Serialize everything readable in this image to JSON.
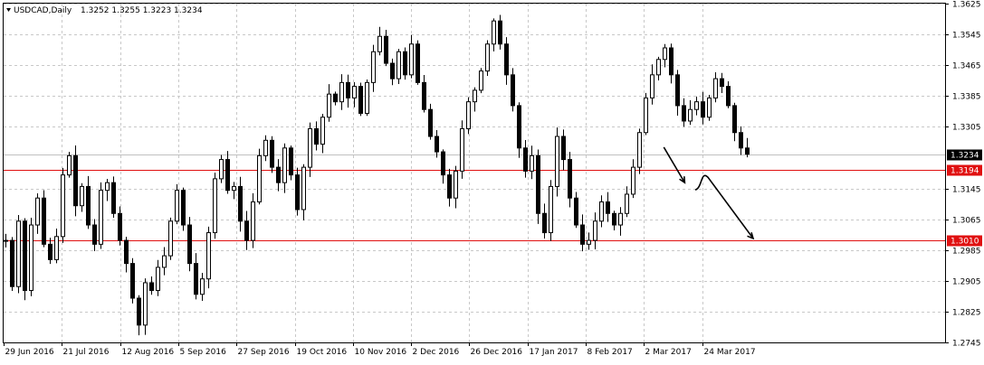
{
  "chart_data": {
    "type": "candlestick",
    "header": {
      "symbol": "USDCAD,Daily",
      "ohlc": "1.3252 1.3255 1.3223 1.3234"
    },
    "y_axis": {
      "ylim": [
        1.2745,
        1.3625
      ],
      "ticks": [
        "1.3625",
        "1.3545",
        "1.3465",
        "1.3385",
        "1.3305",
        "1.3145",
        "1.3065",
        "1.2985",
        "1.2905",
        "1.2825",
        "1.2745"
      ],
      "grid": true
    },
    "x_axis": {
      "ticks": [
        "29 Jun 2016",
        "21 Jul 2016",
        "12 Aug 2016",
        "5 Sep 2016",
        "27 Sep 2016",
        "19 Oct 2016",
        "10 Nov 2016",
        "2 Dec 2016",
        "26 Dec 2016",
        "17 Jan 2017",
        "8 Feb 2017",
        "2 Mar 2017",
        "24 Mar 2017"
      ],
      "grid": true
    },
    "current_price_tag": {
      "value": 1.3234,
      "label": "1.3234",
      "color": "#000000"
    },
    "horizontal_levels": [
      {
        "value": 1.3194,
        "label": "1.3194",
        "color": "#e01010"
      },
      {
        "value": 1.301,
        "label": "1.3010",
        "color": "#e01010"
      }
    ],
    "price_path": [
      1.301,
      1.289,
      1.306,
      1.288,
      1.305,
      1.312,
      1.3,
      1.296,
      1.302,
      1.318,
      1.323,
      1.31,
      1.315,
      1.305,
      1.3,
      1.314,
      1.316,
      1.308,
      1.301,
      1.295,
      1.286,
      1.279,
      1.29,
      1.288,
      1.294,
      1.297,
      1.306,
      1.314,
      1.305,
      1.295,
      1.287,
      1.291,
      1.303,
      1.317,
      1.322,
      1.314,
      1.315,
      1.306,
      1.301,
      1.311,
      1.323,
      1.327,
      1.32,
      1.316,
      1.325,
      1.318,
      1.309,
      1.32,
      1.33,
      1.326,
      1.333,
      1.339,
      1.337,
      1.342,
      1.338,
      1.341,
      1.334,
      1.342,
      1.35,
      1.354,
      1.347,
      1.343,
      1.35,
      1.344,
      1.352,
      1.342,
      1.335,
      1.328,
      1.324,
      1.318,
      1.312,
      1.319,
      1.33,
      1.337,
      1.34,
      1.345,
      1.352,
      1.358,
      1.352,
      1.344,
      1.336,
      1.325,
      1.319,
      1.323,
      1.308,
      1.303,
      1.315,
      1.328,
      1.322,
      1.312,
      1.305,
      1.3,
      1.301,
      1.306,
      1.311,
      1.308,
      1.305,
      1.308,
      1.313,
      1.32,
      1.329,
      1.338,
      1.344,
      1.348,
      1.351,
      1.344,
      1.336,
      1.332,
      1.335,
      1.337,
      1.333,
      1.338,
      1.343,
      1.341,
      1.336,
      1.329,
      1.325,
      1.3234
    ],
    "annotations": [
      {
        "type": "arrow",
        "from": [
          103.9,
          1.3252
        ],
        "to": [
          107.2,
          1.316
        ]
      },
      {
        "type": "freehand-arrow",
        "from": [
          110.0,
          1.316
        ],
        "to": [
          118.0,
          1.3015
        ]
      }
    ]
  }
}
